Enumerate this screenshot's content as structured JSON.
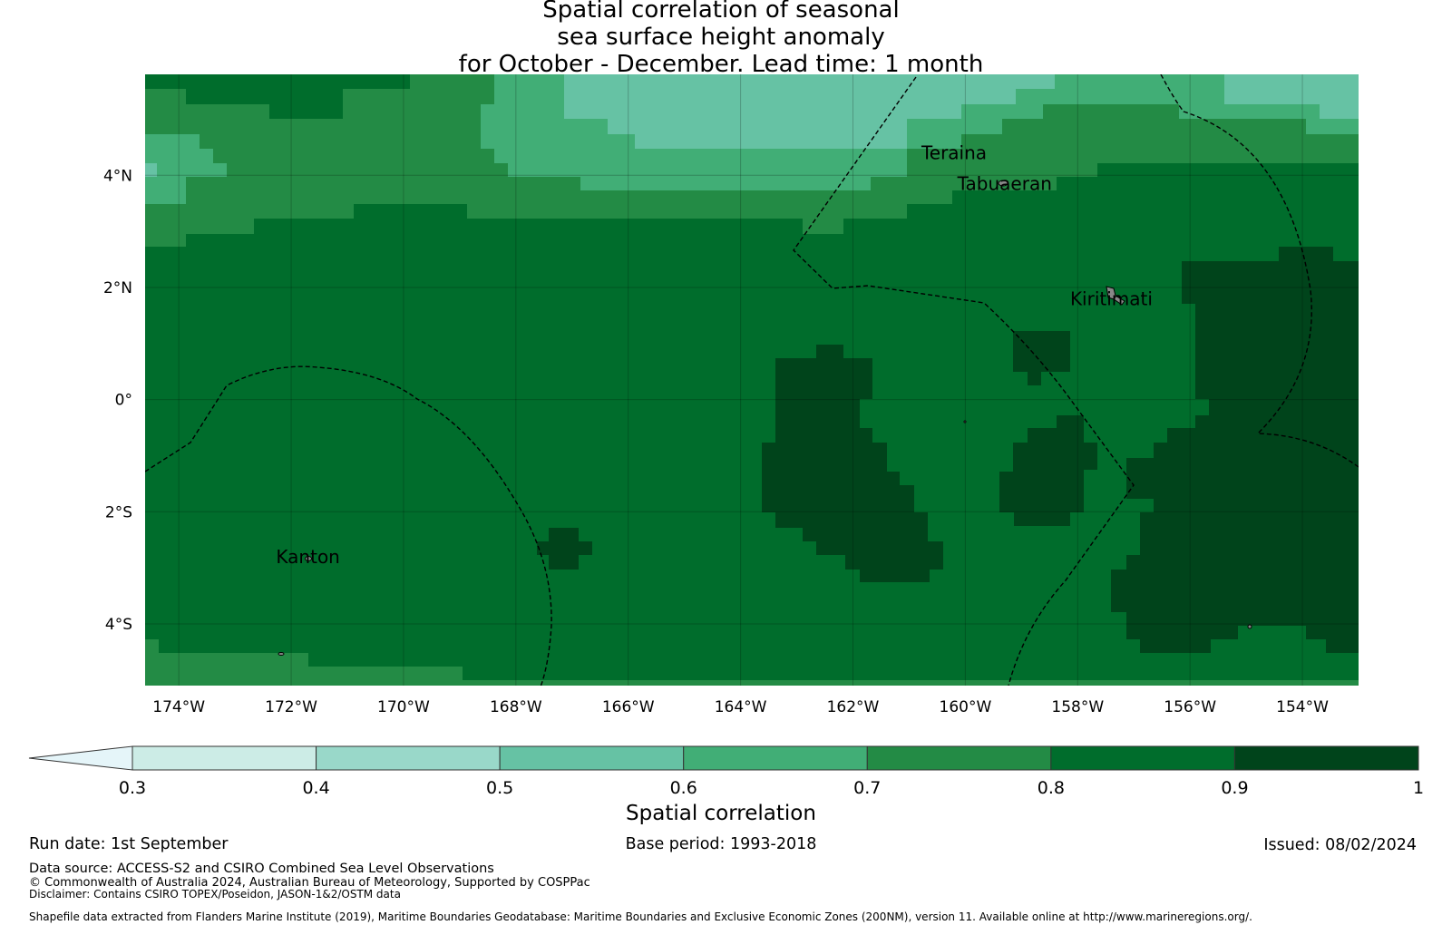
{
  "title": {
    "line1": "Spatial correlation of seasonal",
    "line2": "sea surface height anomaly",
    "line3": "for October - December. Lead time: 1 month"
  },
  "map": {
    "lon_range": [
      -174.6,
      -153.0
    ],
    "lat_range": [
      -5.1,
      5.8
    ],
    "lon_ticks": [
      {
        "value": -174,
        "label": "174°W"
      },
      {
        "value": -172,
        "label": "172°W"
      },
      {
        "value": -170,
        "label": "170°W"
      },
      {
        "value": -168,
        "label": "168°W"
      },
      {
        "value": -166,
        "label": "166°W"
      },
      {
        "value": -164,
        "label": "164°W"
      },
      {
        "value": -162,
        "label": "162°W"
      },
      {
        "value": -160,
        "label": "160°W"
      },
      {
        "value": -158,
        "label": "158°W"
      },
      {
        "value": -156,
        "label": "156°W"
      },
      {
        "value": -154,
        "label": "154°W"
      }
    ],
    "lat_ticks": [
      {
        "value": 4,
        "label": "4°N"
      },
      {
        "value": 2,
        "label": "2°N"
      },
      {
        "value": 0,
        "label": "0°"
      },
      {
        "value": -2,
        "label": "2°S"
      },
      {
        "value": -4,
        "label": "4°S"
      }
    ],
    "places": [
      {
        "name": "Teraina",
        "lon": -160.2,
        "lat": 4.4
      },
      {
        "name": "Tabuaeran",
        "lon": -159.3,
        "lat": 3.85
      },
      {
        "name": "Kiritimati",
        "lon": -157.4,
        "lat": 1.8
      },
      {
        "name": "Kanton",
        "lon": -171.7,
        "lat": -2.8
      }
    ]
  },
  "legend": {
    "title": "Spatial correlation",
    "ticks": [
      "0.3",
      "0.4",
      "0.5",
      "0.6",
      "0.7",
      "0.8",
      "0.9",
      "1"
    ],
    "colors": [
      "#e5f5f9",
      "#ccece6",
      "#99d8c9",
      "#66c2a4",
      "#41ae76",
      "#238b45",
      "#006d2c",
      "#00441b"
    ]
  },
  "footer": {
    "run_date": "Run date: 1st September",
    "base_period": "Base period: 1993-2018",
    "issued": "Issued: 08/02/2024",
    "data_source": "Data source: ACCESS-S2 and CSIRO Combined Sea Level Observations",
    "copyright": "© Commonwealth of Australia 2024, Australian Bureau of Meteorology, Supported by COSPPac",
    "disclaimer": "Disclaimer: Contains CSIRO TOPEX/Poseidon, JASON-1&2/OSTM data",
    "shapefile": "Shapefile data extracted from Flanders Marine Institute (2019), Maritime Boundaries Geodatabase: Maritime Boundaries and Exclusive Economic Zones (200NM), version 11. Available online at http://www.marineregions.org/."
  }
}
